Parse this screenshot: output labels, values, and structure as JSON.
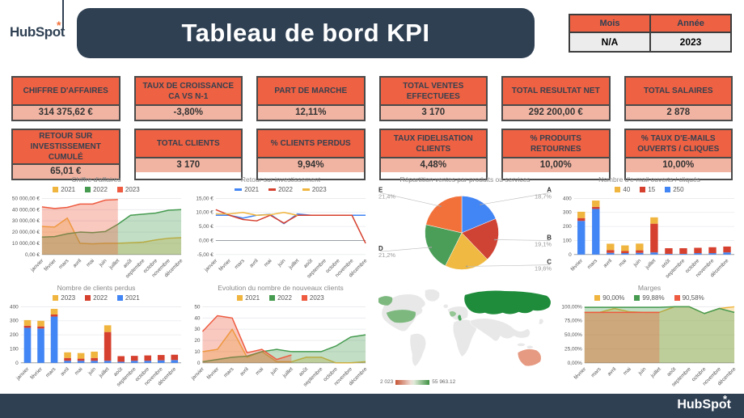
{
  "header": {
    "logo_text": "HubSpot",
    "title": "Tableau de bord KPI",
    "filter_table": {
      "mois_label": "Mois",
      "annee_label": "Année",
      "mois_value": "N/A",
      "annee_value": "2023"
    }
  },
  "colors": {
    "navy": "#2f4053",
    "card_orange": "#ee6142",
    "card_salmon": "#f2b4a2",
    "series_yellow": "#f0b53e",
    "series_green": "#469b50",
    "series_red_orange": "#ee5b40",
    "series_blue": "#4285f4",
    "series_red": "#d6402e"
  },
  "kpis": [
    {
      "title": "CHIFFRE D'AFFAIRES",
      "value": "314 375,62 €"
    },
    {
      "title": "TAUX DE CROISSANCE CA VS N-1",
      "value": "-3,80%"
    },
    {
      "title": "PART DE MARCHE",
      "value": "12,11%"
    },
    {
      "title": "TOTAL VENTES EFFECTUEES",
      "value": "3 170"
    },
    {
      "title": "TOTAL RESULTAT NET",
      "value": "292 200,00 €"
    },
    {
      "title": "TOTAL SALAIRES",
      "value": "2 878"
    },
    {
      "title": "RETOUR SUR INVESTISSEMENT CUMULÉ",
      "value": "65,01 €"
    },
    {
      "title": "TOTAL CLIENTS",
      "value": "3 170"
    },
    {
      "title": "% CLIENTS PERDUS",
      "value": "9,94%"
    },
    {
      "title": "TAUX FIDELISATION CLIENTS",
      "value": "4,48%"
    },
    {
      "title": "% PRODUITS RETOURNES",
      "value": "10,00%"
    },
    {
      "title": "% TAUX D'E-MAILS OUVERTS / CLIQUES",
      "value": "10,00%"
    }
  ],
  "chart_data": [
    {
      "type": "area",
      "title": "Chiffre d'affaires",
      "x": [
        "janvier",
        "février",
        "mars",
        "avril",
        "mai",
        "juin",
        "juillet",
        "août",
        "septembre",
        "octobre",
        "novembre",
        "décembre"
      ],
      "ylim": [
        0,
        50000
      ],
      "yticks": [
        {
          "v": 0,
          "label": "0,00 €"
        },
        {
          "v": 10000,
          "label": "10 000,00 €"
        },
        {
          "v": 20000,
          "label": "20 000,00 €"
        },
        {
          "v": 30000,
          "label": "30 000,00 €"
        },
        {
          "v": 40000,
          "label": "40 000,00 €"
        },
        {
          "v": 50000,
          "label": "50 000,00 €"
        }
      ],
      "series": [
        {
          "name": "2021",
          "color": "#f0b53e",
          "values": [
            25000,
            24500,
            32500,
            10000,
            9500,
            10000,
            10000,
            10500,
            11000,
            13000,
            14500,
            15000
          ]
        },
        {
          "name": "2022",
          "color": "#469b50",
          "values": [
            15500,
            16000,
            18500,
            20000,
            19500,
            20500,
            27000,
            35000,
            36000,
            37000,
            39500,
            40000
          ]
        },
        {
          "name": "2023",
          "color": "#ee5b40",
          "values": [
            42500,
            41000,
            42000,
            45000,
            45000,
            48500,
            49000,
            null,
            null,
            null,
            null,
            null
          ]
        }
      ]
    },
    {
      "type": "line",
      "title": "Retour sur investissement",
      "x": [
        "janvier",
        "février",
        "mars",
        "avril",
        "mai",
        "juin",
        "juillet",
        "août",
        "septembre",
        "octobre",
        "novembre",
        "décembre"
      ],
      "ylim": [
        -5,
        15
      ],
      "yticks": [
        {
          "v": -5,
          "label": "-5,00 €"
        },
        {
          "v": 0,
          "label": "0,00 €"
        },
        {
          "v": 5,
          "label": "5,00 €"
        },
        {
          "v": 10,
          "label": "10,00 €"
        },
        {
          "v": 15,
          "label": "15,00 €"
        }
      ],
      "series": [
        {
          "name": "2021",
          "color": "#4285f4",
          "values": [
            9,
            9,
            8,
            9,
            9.3,
            6,
            9.5,
            9,
            9,
            9,
            9,
            9
          ]
        },
        {
          "name": "2022",
          "color": "#d6402e",
          "values": [
            11,
            9,
            7.5,
            7,
            9,
            6.2,
            9,
            9,
            9,
            9,
            9,
            -1
          ]
        },
        {
          "name": "2023",
          "color": "#f0b53e",
          "values": [
            9.5,
            9.5,
            10,
            9,
            9.2,
            10,
            9,
            null,
            null,
            null,
            null,
            null
          ]
        }
      ]
    },
    {
      "type": "pie",
      "title": "Répartition ventes par produits ou services",
      "slices": [
        {
          "label": "A",
          "pct": "18,7%",
          "value": 18.7,
          "color": "#4285f4"
        },
        {
          "label": "B",
          "pct": "19,1%",
          "value": 19.1,
          "color": "#cf4335"
        },
        {
          "label": "C",
          "pct": "19,6%",
          "value": 19.6,
          "color": "#f0b941"
        },
        {
          "label": "D",
          "pct": "21,2%",
          "value": 21.2,
          "color": "#4a9e58"
        },
        {
          "label": "E",
          "pct": "21,4%",
          "value": 21.4,
          "color": "#f2713a"
        }
      ]
    },
    {
      "type": "stacked-bar",
      "title": "Nombre d'e-mail ouverts / cliqués",
      "x": [
        "février",
        "mars",
        "avril",
        "mai",
        "juin",
        "juillet",
        "août",
        "septembre",
        "octobre",
        "novembre",
        "décembre"
      ],
      "ylim": [
        0,
        400
      ],
      "yticks": [
        {
          "v": 0,
          "label": "0"
        },
        {
          "v": 100,
          "label": "100"
        },
        {
          "v": 200,
          "label": "200"
        },
        {
          "v": 300,
          "label": "300"
        },
        {
          "v": 400,
          "label": "400"
        }
      ],
      "series": [
        {
          "name": "40",
          "color": "#f0b53e",
          "values": [
            45,
            45,
            45,
            40,
            48,
            45,
            0,
            0,
            0,
            0,
            0
          ]
        },
        {
          "name": "15",
          "color": "#d6402e",
          "values": [
            20,
            15,
            20,
            15,
            18,
            205,
            40,
            40,
            38,
            42,
            42
          ]
        },
        {
          "name": "250",
          "color": "#4285f4",
          "values": [
            240,
            325,
            12,
            10,
            12,
            15,
            5,
            5,
            10,
            10,
            15
          ]
        }
      ]
    },
    {
      "type": "stacked-bar",
      "title": "Nombre de clients perdus",
      "x": [
        "janvier",
        "février",
        "mars",
        "avril",
        "mai",
        "juin",
        "juillet",
        "août",
        "septembre",
        "octobre",
        "novembre",
        "décembre"
      ],
      "ylim": [
        0,
        400
      ],
      "yticks": [
        {
          "v": 0,
          "label": "0"
        },
        {
          "v": 100,
          "label": "100"
        },
        {
          "v": 200,
          "label": "200"
        },
        {
          "v": 300,
          "label": "300"
        },
        {
          "v": 400,
          "label": "400"
        }
      ],
      "series": [
        {
          "name": "2023",
          "color": "#f0b53e",
          "values": [
            40,
            40,
            40,
            40,
            40,
            45,
            48,
            0,
            0,
            0,
            0,
            0
          ]
        },
        {
          "name": "2022",
          "color": "#d6402e",
          "values": [
            15,
            15,
            15,
            20,
            15,
            20,
            205,
            40,
            35,
            38,
            38,
            38
          ]
        },
        {
          "name": "2021",
          "color": "#4285f4",
          "values": [
            250,
            245,
            330,
            15,
            15,
            15,
            15,
            8,
            15,
            15,
            18,
            20
          ]
        }
      ]
    },
    {
      "type": "area",
      "title": "Evolution du nombre de nouveaux clients",
      "x": [
        "janvier",
        "février",
        "mars",
        "avril",
        "mai",
        "juin",
        "juillet",
        "août",
        "septembre",
        "octobre",
        "novembre",
        "décembre"
      ],
      "ylim": [
        0,
        50
      ],
      "yticks": [
        {
          "v": 0,
          "label": "0"
        },
        {
          "v": 10,
          "label": "10"
        },
        {
          "v": 20,
          "label": "20"
        },
        {
          "v": 30,
          "label": "30"
        },
        {
          "v": 40,
          "label": "40"
        },
        {
          "v": 50,
          "label": "50"
        }
      ],
      "series": [
        {
          "name": "2021",
          "color": "#f0b53e",
          "values": [
            10,
            12,
            30,
            5,
            10,
            1,
            1,
            5,
            5,
            0,
            0,
            1
          ]
        },
        {
          "name": "2022",
          "color": "#469b50",
          "values": [
            1,
            3,
            5,
            6,
            10,
            12,
            10,
            10,
            10,
            15,
            23,
            25
          ]
        },
        {
          "name": "2023",
          "color": "#ee5b40",
          "values": [
            28,
            42,
            40,
            9,
            12,
            3,
            7,
            null,
            null,
            null,
            null,
            null
          ]
        }
      ]
    },
    {
      "type": "geo",
      "legend_min": "2 023",
      "legend_max": "55 963.12",
      "countries": [
        {
          "name": "Russie",
          "color": "#1f8c3b"
        },
        {
          "name": "États-Unis",
          "color": "#7db87f"
        },
        {
          "name": "France",
          "color": "#95c695"
        },
        {
          "name": "Italie",
          "color": "#4ea860"
        },
        {
          "name": "Australie",
          "color": "#e69a82"
        }
      ]
    },
    {
      "type": "area",
      "title": "Marges",
      "x": [
        "février",
        "mars",
        "avril",
        "mai",
        "juin",
        "juillet",
        "août",
        "septembre",
        "octobre",
        "novembre",
        "décembre"
      ],
      "ylim": [
        0,
        100
      ],
      "yticks": [
        {
          "v": 0,
          "label": "0,00%"
        },
        {
          "v": 25,
          "label": "25,00%"
        },
        {
          "v": 50,
          "label": "50,00%"
        },
        {
          "v": 75,
          "label": "75,00%"
        },
        {
          "v": 100,
          "label": "100,00%"
        }
      ],
      "series": [
        {
          "name": "90,00%",
          "color": "#f0b53e",
          "values": [
            90,
            90,
            97,
            91,
            90,
            90,
            100,
            100,
            88,
            97,
            100
          ]
        },
        {
          "name": "99,88%",
          "color": "#469b50",
          "values": [
            99,
            99,
            99,
            99,
            99,
            99,
            100,
            100,
            88,
            97,
            90
          ]
        },
        {
          "name": "90,58%",
          "color": "#ee5b40",
          "values": [
            90,
            90,
            90,
            90,
            90,
            90,
            null,
            null,
            null,
            null,
            null
          ]
        }
      ]
    }
  ],
  "footer": {
    "logo_text": "HubSpot"
  }
}
